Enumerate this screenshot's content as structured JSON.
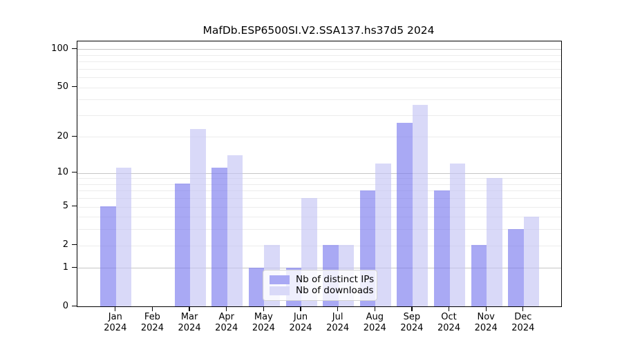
{
  "figure": {
    "title": "MafDb.ESP6500SI.V2.SSA137.hs37d5 2024"
  },
  "chart_data": {
    "type": "bar",
    "title": "MafDb.ESP6500SI.V2.SSA137.hs37d5 2024",
    "categories": [
      "Jan 2024",
      "Feb 2024",
      "Mar 2024",
      "Apr 2024",
      "May 2024",
      "Jun 2024",
      "Jul 2024",
      "Aug 2024",
      "Sep 2024",
      "Oct 2024",
      "Nov 2024",
      "Dec 2024"
    ],
    "series": [
      {
        "name": "Nb of distinct IPs",
        "color": "#7b7bee",
        "alpha": 0.65,
        "display_color": "#a9a9f4",
        "values": [
          5,
          0,
          8,
          11,
          1,
          1,
          2,
          7,
          26,
          7,
          2,
          3
        ]
      },
      {
        "name": "Nb of downloads",
        "color": "#c5c5f4",
        "alpha": 0.65,
        "display_color": "#d9d9f8",
        "values": [
          11,
          0,
          23,
          14,
          2,
          6,
          2,
          12,
          36,
          12,
          9,
          4
        ]
      }
    ],
    "yscale": "log1p",
    "ylim": [
      0,
      115
    ],
    "yticks": [
      0,
      1,
      2,
      5,
      10,
      20,
      50,
      100
    ],
    "major_gridlines": [
      1,
      10,
      100
    ],
    "minor_gridlines": [
      2,
      3,
      4,
      5,
      6,
      7,
      8,
      9,
      20,
      30,
      40,
      50,
      60,
      70,
      80,
      90
    ],
    "grid": true,
    "legend_position": "lower center"
  }
}
